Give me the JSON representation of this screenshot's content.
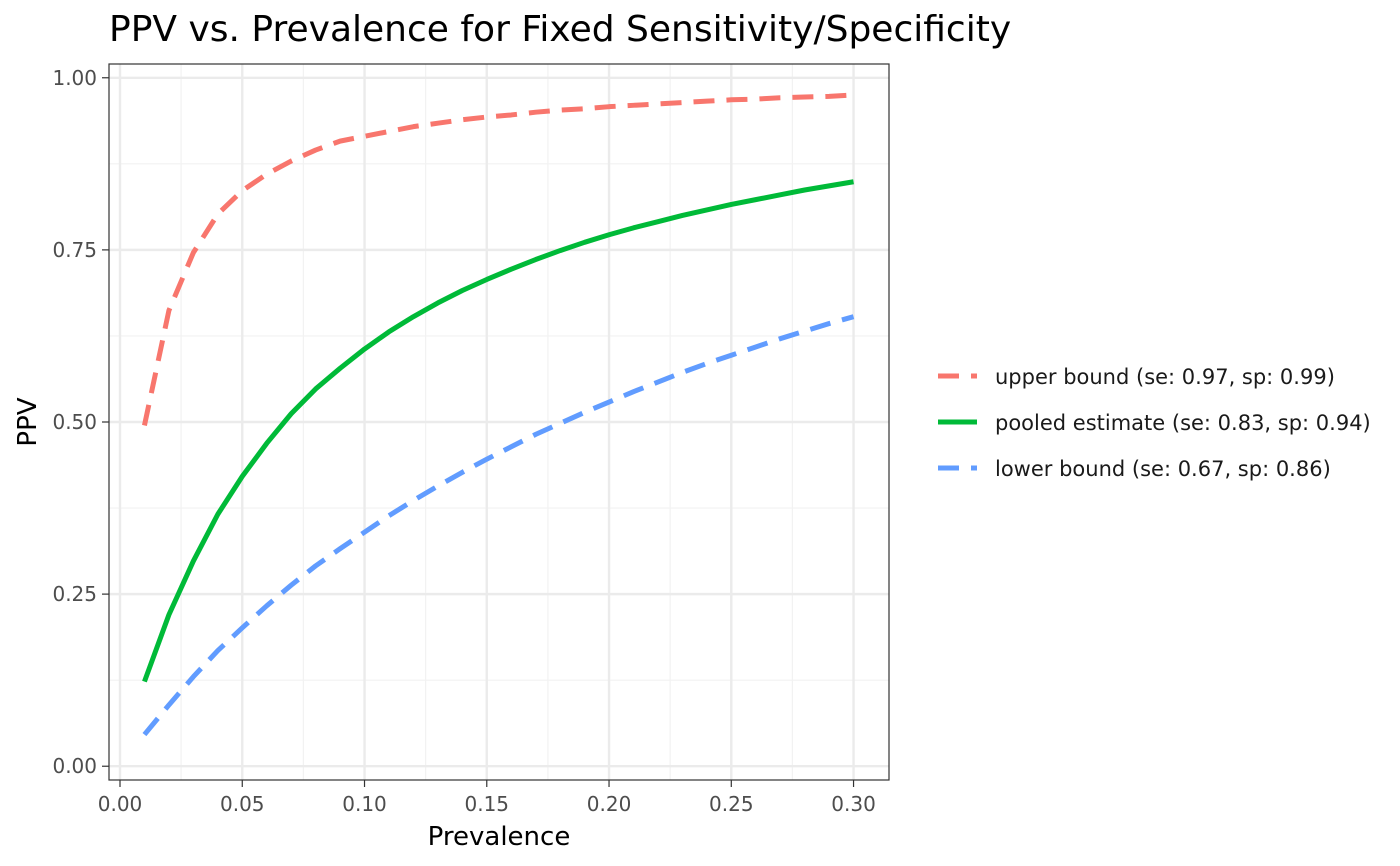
{
  "chart_data": {
    "type": "line",
    "title": "PPV vs. Prevalence for Fixed Sensitivity/Specificity",
    "xlabel": "Prevalence",
    "ylabel": "PPV",
    "xlim": [
      -0.0045,
      0.3145
    ],
    "ylim": [
      -0.02,
      1.02
    ],
    "x_ticks": [
      0,
      0.05,
      0.1,
      0.15,
      0.2,
      0.25,
      0.3
    ],
    "x_tick_labels": [
      "0.00",
      "0.05",
      "0.10",
      "0.15",
      "0.20",
      "0.25",
      "0.30"
    ],
    "y_ticks": [
      0,
      0.25,
      0.5,
      0.75,
      1.0
    ],
    "y_tick_labels": [
      "0.00",
      "0.25",
      "0.50",
      "0.75",
      "1.00"
    ],
    "grid": true,
    "legend_position": "right",
    "x": [
      0.01,
      0.02,
      0.03,
      0.04,
      0.05,
      0.06,
      0.07,
      0.08,
      0.09,
      0.1,
      0.11,
      0.12,
      0.13,
      0.14,
      0.15,
      0.16,
      0.17,
      0.18,
      0.19,
      0.2,
      0.21,
      0.22,
      0.23,
      0.24,
      0.25,
      0.26,
      0.27,
      0.28,
      0.29,
      0.3
    ],
    "series": [
      {
        "name": "upper bound (se: 0.97, sp: 0.99)",
        "color": "#F8766D",
        "dash": "dashed",
        "values": [
          0.495,
          0.662,
          0.746,
          0.802,
          0.836,
          0.86,
          0.879,
          0.895,
          0.908,
          0.915,
          0.922,
          0.929,
          0.934,
          0.939,
          0.943,
          0.946,
          0.95,
          0.953,
          0.955,
          0.958,
          0.96,
          0.962,
          0.964,
          0.966,
          0.968,
          0.969,
          0.971,
          0.972,
          0.973,
          0.975
        ]
      },
      {
        "name": "pooled estimate (se: 0.83, sp: 0.94)",
        "color": "#00BA38",
        "dash": "solid",
        "values": [
          0.123,
          0.22,
          0.298,
          0.366,
          0.421,
          0.469,
          0.512,
          0.548,
          0.578,
          0.606,
          0.631,
          0.653,
          0.673,
          0.691,
          0.707,
          0.722,
          0.736,
          0.749,
          0.761,
          0.772,
          0.782,
          0.791,
          0.8,
          0.808,
          0.816,
          0.823,
          0.83,
          0.837,
          0.843,
          0.849
        ]
      },
      {
        "name": "lower bound (se: 0.67, sp: 0.86)",
        "color": "#619CFF",
        "dash": "dashed",
        "values": [
          0.046,
          0.089,
          0.13,
          0.168,
          0.201,
          0.233,
          0.263,
          0.291,
          0.316,
          0.34,
          0.364,
          0.386,
          0.407,
          0.427,
          0.446,
          0.464,
          0.482,
          0.498,
          0.514,
          0.529,
          0.544,
          0.558,
          0.572,
          0.585,
          0.597,
          0.609,
          0.621,
          0.632,
          0.643,
          0.653
        ]
      }
    ]
  }
}
